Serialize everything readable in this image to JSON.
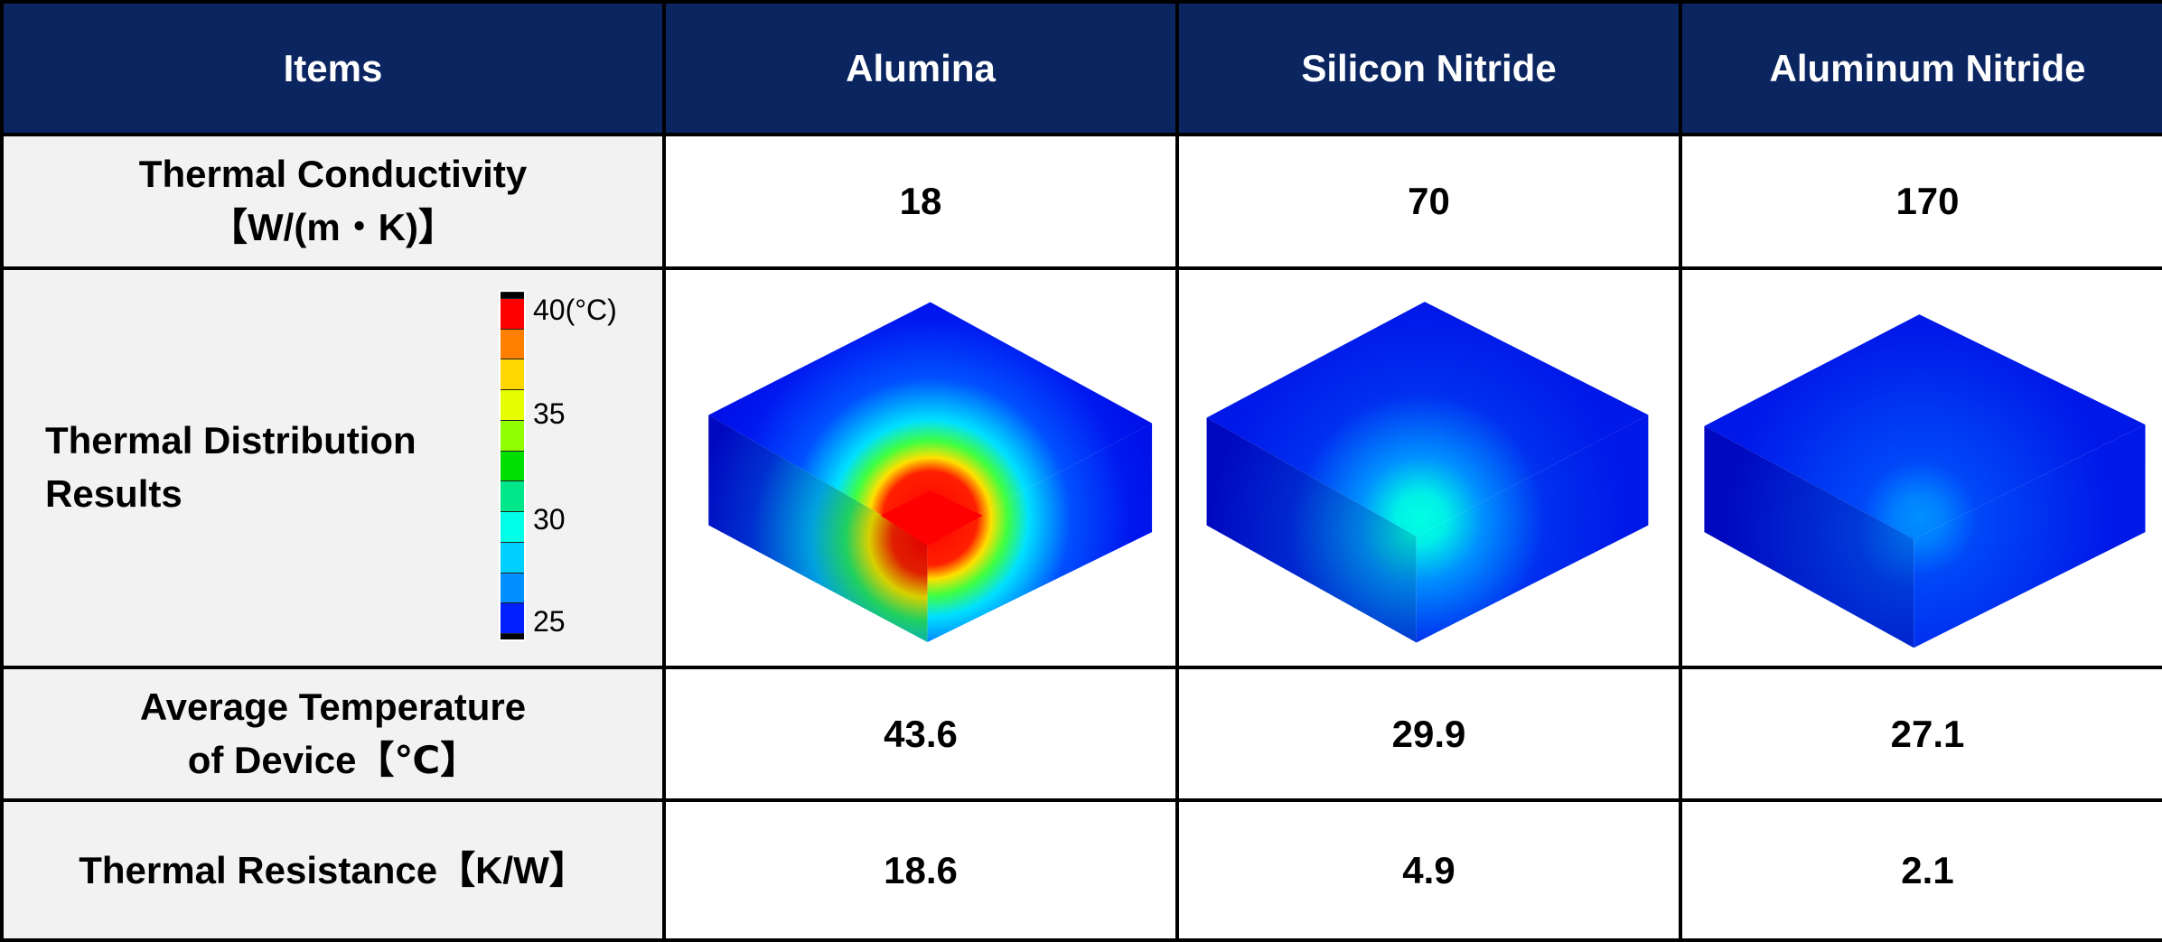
{
  "header": {
    "items": "Items",
    "col1": "Alumina",
    "col2": "Silicon Nitride",
    "col3": "Aluminum Nitride"
  },
  "rows": {
    "conductivity": {
      "label_line1": "Thermal Conductivity",
      "label_line2": "【W/(m・K)】",
      "values": [
        "18",
        "70",
        "170"
      ]
    },
    "distribution": {
      "label_line1": "Thermal Distribution",
      "label_line2": "Results",
      "legend": {
        "top": "40(°C)",
        "t35": "35",
        "t30": "30",
        "t25": "25",
        "colors": [
          "#ff0000",
          "#ff8000",
          "#ffd700",
          "#e6ff00",
          "#90ff00",
          "#00e000",
          "#00e68a",
          "#00ffe6",
          "#00d0ff",
          "#0090ff",
          "#0020ff"
        ]
      }
    },
    "avg_temp": {
      "label_line1": "Average Temperature",
      "label_line2": "of Device【℃】",
      "values": [
        "43.6",
        "29.9",
        "27.1"
      ]
    },
    "resistance": {
      "label": "Thermal Resistance【K/W】",
      "values": [
        "18.6",
        "4.9",
        "2.1"
      ]
    }
  },
  "colors": {
    "header_bg": "#0b2560",
    "label_bg": "#f2f2f2"
  }
}
